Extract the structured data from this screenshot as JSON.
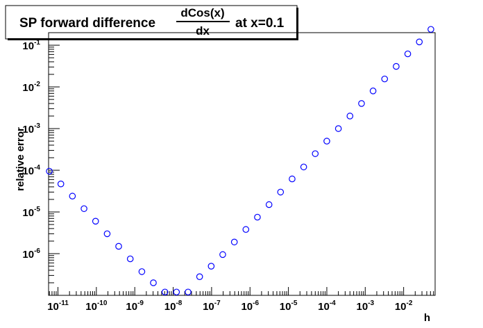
{
  "chart_data": {
    "type": "scatter",
    "title": {
      "prefix": "SP forward difference",
      "numerator": "dCos(x)",
      "denominator": "dx",
      "suffix": "at x=0.1"
    },
    "xlabel": "h",
    "ylabel": "relative error",
    "x_scale": "log",
    "y_scale": "log",
    "xlim": [
      5.7e-12,
      0.066
    ],
    "ylim": [
      1e-07,
      0.2
    ],
    "x_tick_exponents": [
      -11,
      -10,
      -9,
      -8,
      -7,
      -6,
      -5,
      -4,
      -3,
      -2
    ],
    "y_tick_exponents": [
      -6,
      -5,
      -4,
      -3,
      -2,
      -1
    ],
    "grid": false,
    "marker": "open-circle",
    "marker_color": "#0000ff",
    "series": [
      {
        "x": [
          5.96e-12,
          1.19e-11,
          2.38e-11,
          4.77e-11,
          9.54e-11,
          1.91e-10,
          3.81e-10,
          7.63e-10,
          1.53e-09,
          3.05e-09,
          6.1e-09,
          1.22e-08,
          2.44e-08,
          4.88e-08,
          9.77e-08,
          1.95e-07,
          3.91e-07,
          7.81e-07,
          1.56e-06,
          3.13e-06,
          6.25e-06,
          1.25e-05,
          2.5e-05,
          5e-05,
          0.0001,
          0.0002,
          0.0004,
          0.0008,
          0.0016,
          0.0032,
          0.0064,
          0.0128,
          0.0256,
          0.0512
        ],
        "y": [
          9.5e-05,
          4.7e-05,
          2.4e-05,
          1.2e-05,
          6e-06,
          3e-06,
          1.5e-06,
          7.5e-07,
          3.7e-07,
          2e-07,
          1.2e-07,
          1.2e-07,
          1.2e-07,
          2.8e-07,
          5e-07,
          9.5e-07,
          1.9e-06,
          3.8e-06,
          7.5e-06,
          1.5e-05,
          3e-05,
          6.2e-05,
          0.00012,
          0.00025,
          0.0005,
          0.001,
          0.002,
          0.004,
          0.008,
          0.0155,
          0.031,
          0.062,
          0.12,
          0.24
        ]
      }
    ]
  }
}
